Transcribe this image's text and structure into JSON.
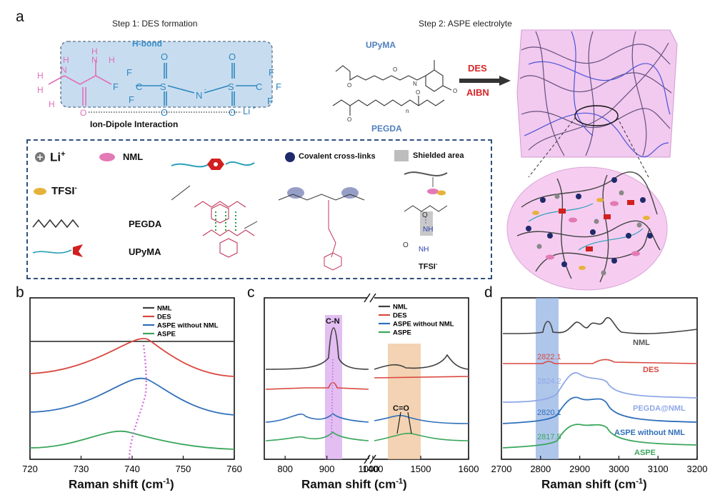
{
  "panels": {
    "a": "a",
    "b": "b",
    "c": "c",
    "d": "d"
  },
  "step1_title": "Step 1: DES formation",
  "step2_title": "Step 2: ASPE electrolyte",
  "hbond_label": "H-bond",
  "ion_dipole_label": "Ion-Dipole Interaction",
  "li_label": "Li",
  "upyma_label": "UPyMA",
  "pegda_label": "PEGDA",
  "des_arrow_top": "DES",
  "des_arrow_bottom": "AIBN",
  "legend": {
    "li": "Li",
    "nml": "NML",
    "tfsi": "TFSI",
    "pegda": "PEGDA",
    "upyma": "UPyMA",
    "covalent": "Covalent cross-links",
    "shielded": "Shielded area",
    "tfsi_small": "TFSI"
  },
  "chart_data": [
    {
      "type": "line",
      "panel": "b",
      "xlabel": "Raman shift (cm⁻¹)",
      "xlim": [
        720,
        760
      ],
      "xticks": [
        720,
        730,
        740,
        750,
        760
      ],
      "legend_position": "top-right",
      "series": [
        {
          "name": "NML",
          "color": "#404040",
          "peak_x": null
        },
        {
          "name": "DES",
          "color": "#d9473f",
          "peak_x": 743.5
        },
        {
          "name": "ASPE without NML",
          "color": "#2f6fba",
          "peak_x": 743.8
        },
        {
          "name": "ASPE",
          "color": "#3aa65b",
          "peak_x": 740.2
        }
      ]
    },
    {
      "type": "line",
      "panel": "c",
      "xlabel": "Raman shift (cm⁻¹)",
      "xticks": [
        800,
        900,
        1000,
        1400,
        1500,
        1600
      ],
      "broken_axis": [
        1000,
        1400
      ],
      "annotations": [
        "C-N",
        "C=O"
      ],
      "legend_position": "top-right",
      "series": [
        {
          "name": "NML",
          "color": "#404040"
        },
        {
          "name": "DES",
          "color": "#d9473f"
        },
        {
          "name": "ASPE without NML",
          "color": "#2f6fba"
        },
        {
          "name": "ASPE",
          "color": "#3aa65b"
        }
      ]
    },
    {
      "type": "line",
      "panel": "d",
      "xlabel": "Raman shift (cm⁻¹)",
      "xlim": [
        2700,
        3200
      ],
      "xticks": [
        2700,
        2800,
        2900,
        3000,
        3100,
        3200
      ],
      "series": [
        {
          "name": "NML",
          "color": "#404040",
          "peak_label": ""
        },
        {
          "name": "DES",
          "color": "#d9473f",
          "peak_label": "2822.1"
        },
        {
          "name": "PEGDA@NML",
          "color": "#8fa8e6",
          "peak_label": "2824.2"
        },
        {
          "name": "ASPE without NML",
          "color": "#2f6fba",
          "peak_label": "2820.1"
        },
        {
          "name": "ASPE",
          "color": "#3aa65b",
          "peak_label": "2817.5"
        }
      ]
    }
  ],
  "axis_titles": {
    "b": "Raman shift (cm",
    "c": "Raman shift (cm",
    "d": "Raman shift (cm",
    "sup": "-1",
    "close": ")"
  }
}
